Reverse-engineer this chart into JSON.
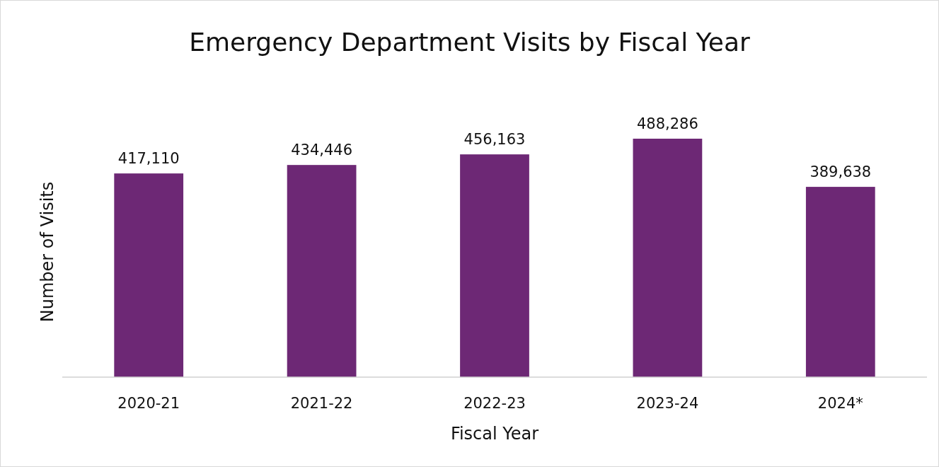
{
  "chart_data": {
    "type": "bar",
    "title": "Emergency Department Visits by Fiscal Year",
    "xlabel": "Fiscal Year",
    "ylabel": "Number of Visits",
    "categories": [
      "2020-21",
      "2021-22",
      "2022-23",
      "2023-24",
      "2024*"
    ],
    "values": [
      417110,
      434446,
      456163,
      488286,
      389638
    ],
    "value_labels": [
      "417,110",
      "434,446",
      "456,163",
      "488,286",
      "389,638"
    ],
    "color": "#6d2875",
    "tick_labels": "x"
  }
}
